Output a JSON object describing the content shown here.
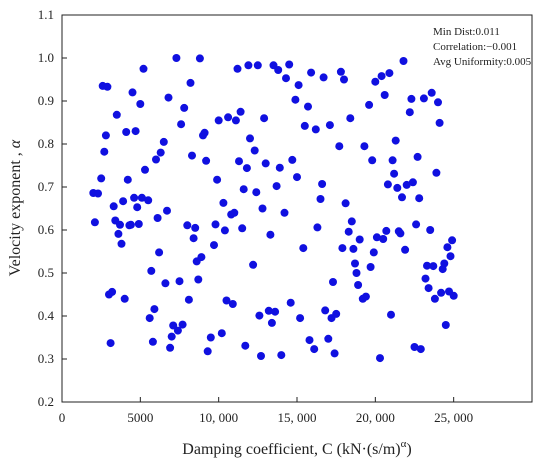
{
  "chart_data": {
    "type": "scatter",
    "title": "",
    "xlabel": "Damping coefficient, C (kN·(s/m)",
    "xlabel_superscript": "α",
    "xlabel_close": ")",
    "ylabel": "Velocity exponent , ",
    "ylabel_symbol": "α",
    "xlim": [
      0,
      30000
    ],
    "ylim": [
      0.2,
      1.1
    ],
    "x_ticks": [
      0,
      5000,
      10000,
      15000,
      20000,
      25000
    ],
    "x_tick_labels": [
      "0",
      "5000",
      "10, 000",
      "15, 000",
      "20, 000",
      "25, 000"
    ],
    "y_ticks": [
      0.2,
      0.3,
      0.4,
      0.5,
      0.6,
      0.7,
      0.8,
      0.9,
      1.0,
      1.1
    ],
    "y_tick_labels": [
      "0.2",
      "0.3",
      "0.4",
      "0.5",
      "0.6",
      "0.7",
      "0.8",
      "0.9",
      "1.0",
      "1.1"
    ],
    "grid": false,
    "marker_color": "#1010e0",
    "annotations": [
      "Min Dist:0.011",
      "Correlation:−0.001",
      "Avg Uniformity:0.005"
    ],
    "points": [
      [
        2000,
        0.686
      ],
      [
        2100,
        0.618
      ],
      [
        2300,
        0.685
      ],
      [
        2500,
        0.72
      ],
      [
        2600,
        0.935
      ],
      [
        2700,
        0.782
      ],
      [
        2800,
        0.82
      ],
      [
        2900,
        0.933
      ],
      [
        3000,
        0.45
      ],
      [
        3100,
        0.337
      ],
      [
        3200,
        0.456
      ],
      [
        3300,
        0.655
      ],
      [
        3400,
        0.622
      ],
      [
        3500,
        0.868
      ],
      [
        3600,
        0.591
      ],
      [
        3700,
        0.612
      ],
      [
        3800,
        0.568
      ],
      [
        3900,
        0.667
      ],
      [
        4000,
        0.44
      ],
      [
        4100,
        0.828
      ],
      [
        4200,
        0.717
      ],
      [
        4300,
        0.611
      ],
      [
        4400,
        0.612
      ],
      [
        4500,
        0.92
      ],
      [
        4600,
        0.675
      ],
      [
        4700,
        0.83
      ],
      [
        4800,
        0.653
      ],
      [
        4900,
        0.614
      ],
      [
        5000,
        0.893
      ],
      [
        5100,
        0.675
      ],
      [
        5200,
        0.975
      ],
      [
        5300,
        0.74
      ],
      [
        5500,
        0.669
      ],
      [
        5600,
        0.395
      ],
      [
        5700,
        0.505
      ],
      [
        5800,
        0.34
      ],
      [
        5900,
        0.416
      ],
      [
        6000,
        0.764
      ],
      [
        6100,
        0.628
      ],
      [
        6200,
        0.548
      ],
      [
        6300,
        0.78
      ],
      [
        6500,
        0.805
      ],
      [
        6600,
        0.476
      ],
      [
        6700,
        0.645
      ],
      [
        6800,
        0.908
      ],
      [
        6900,
        0.326
      ],
      [
        7000,
        0.352
      ],
      [
        7100,
        0.378
      ],
      [
        7300,
        1.0
      ],
      [
        7400,
        0.366
      ],
      [
        7500,
        0.481
      ],
      [
        7600,
        0.846
      ],
      [
        7700,
        0.38
      ],
      [
        7800,
        0.884
      ],
      [
        8000,
        0.611
      ],
      [
        8100,
        0.438
      ],
      [
        8200,
        0.942
      ],
      [
        8300,
        0.773
      ],
      [
        8400,
        0.581
      ],
      [
        8500,
        0.605
      ],
      [
        8600,
        0.527
      ],
      [
        8700,
        0.485
      ],
      [
        8800,
        0.999
      ],
      [
        8900,
        0.537
      ],
      [
        9000,
        0.82
      ],
      [
        9100,
        0.826
      ],
      [
        9200,
        0.761
      ],
      [
        9300,
        0.318
      ],
      [
        9500,
        0.35
      ],
      [
        9700,
        0.565
      ],
      [
        9800,
        0.613
      ],
      [
        9900,
        0.717
      ],
      [
        10000,
        0.855
      ],
      [
        10200,
        0.36
      ],
      [
        10300,
        0.663
      ],
      [
        10400,
        0.599
      ],
      [
        10500,
        0.436
      ],
      [
        10600,
        0.862
      ],
      [
        10800,
        0.636
      ],
      [
        10900,
        0.428
      ],
      [
        11000,
        0.64
      ],
      [
        11100,
        0.855
      ],
      [
        11200,
        0.975
      ],
      [
        11300,
        0.76
      ],
      [
        11400,
        0.875
      ],
      [
        11500,
        0.604
      ],
      [
        11600,
        0.695
      ],
      [
        11700,
        0.331
      ],
      [
        11800,
        0.744
      ],
      [
        11900,
        0.983
      ],
      [
        12000,
        0.813
      ],
      [
        12200,
        0.519
      ],
      [
        12300,
        0.785
      ],
      [
        12400,
        0.688
      ],
      [
        12500,
        0.983
      ],
      [
        12600,
        0.401
      ],
      [
        12700,
        0.307
      ],
      [
        12800,
        0.65
      ],
      [
        12900,
        0.86
      ],
      [
        13000,
        0.755
      ],
      [
        13200,
        0.412
      ],
      [
        13300,
        0.589
      ],
      [
        13400,
        0.384
      ],
      [
        13500,
        0.983
      ],
      [
        13600,
        0.41
      ],
      [
        13700,
        0.702
      ],
      [
        13800,
        0.972
      ],
      [
        13900,
        0.745
      ],
      [
        14000,
        0.309
      ],
      [
        14200,
        0.64
      ],
      [
        14300,
        0.953
      ],
      [
        14500,
        0.985
      ],
      [
        14600,
        0.431
      ],
      [
        14700,
        0.763
      ],
      [
        14900,
        0.903
      ],
      [
        15000,
        0.723
      ],
      [
        15100,
        0.937
      ],
      [
        15200,
        0.395
      ],
      [
        15400,
        0.558
      ],
      [
        15500,
        0.842
      ],
      [
        15700,
        0.887
      ],
      [
        15800,
        0.344
      ],
      [
        15900,
        0.966
      ],
      [
        16100,
        0.323
      ],
      [
        16200,
        0.834
      ],
      [
        16300,
        0.606
      ],
      [
        16500,
        0.672
      ],
      [
        16600,
        0.707
      ],
      [
        16700,
        0.955
      ],
      [
        16800,
        0.413
      ],
      [
        17000,
        0.347
      ],
      [
        17100,
        0.844
      ],
      [
        17200,
        0.395
      ],
      [
        17300,
        0.479
      ],
      [
        17400,
        0.313
      ],
      [
        17500,
        0.405
      ],
      [
        17700,
        0.795
      ],
      [
        17800,
        0.968
      ],
      [
        17900,
        0.558
      ],
      [
        18000,
        0.95
      ],
      [
        18100,
        0.662
      ],
      [
        18300,
        0.596
      ],
      [
        18400,
        0.86
      ],
      [
        18500,
        0.62
      ],
      [
        18600,
        0.556
      ],
      [
        18700,
        0.522
      ],
      [
        18800,
        0.5
      ],
      [
        18900,
        0.472
      ],
      [
        19000,
        0.578
      ],
      [
        19200,
        0.44
      ],
      [
        19300,
        0.795
      ],
      [
        19400,
        0.445
      ],
      [
        19600,
        0.891
      ],
      [
        19700,
        0.514
      ],
      [
        19800,
        0.762
      ],
      [
        19900,
        0.548
      ],
      [
        20000,
        0.945
      ],
      [
        20100,
        0.583
      ],
      [
        20300,
        0.302
      ],
      [
        20400,
        0.958
      ],
      [
        20500,
        0.579
      ],
      [
        20600,
        0.914
      ],
      [
        20700,
        0.598
      ],
      [
        20800,
        0.706
      ],
      [
        20900,
        0.965
      ],
      [
        21000,
        0.403
      ],
      [
        21100,
        0.762
      ],
      [
        21200,
        0.731
      ],
      [
        21300,
        0.808
      ],
      [
        21400,
        0.698
      ],
      [
        21500,
        0.597
      ],
      [
        21600,
        0.592
      ],
      [
        21700,
        0.676
      ],
      [
        21800,
        0.993
      ],
      [
        21900,
        0.554
      ],
      [
        22000,
        0.705
      ],
      [
        22200,
        0.874
      ],
      [
        22300,
        0.905
      ],
      [
        22400,
        0.711
      ],
      [
        22500,
        0.328
      ],
      [
        22600,
        0.613
      ],
      [
        22700,
        0.77
      ],
      [
        22800,
        0.674
      ],
      [
        22900,
        0.323
      ],
      [
        23100,
        0.906
      ],
      [
        23200,
        0.487
      ],
      [
        23300,
        0.517
      ],
      [
        23400,
        0.465
      ],
      [
        23500,
        0.6
      ],
      [
        23600,
        0.919
      ],
      [
        23700,
        0.516
      ],
      [
        23800,
        0.44
      ],
      [
        23900,
        0.733
      ],
      [
        24000,
        0.897
      ],
      [
        24100,
        0.849
      ],
      [
        24200,
        0.454
      ],
      [
        24300,
        0.509
      ],
      [
        24400,
        0.522
      ],
      [
        24500,
        0.379
      ],
      [
        24600,
        0.56
      ],
      [
        24700,
        0.457
      ],
      [
        24800,
        0.539
      ],
      [
        24900,
        0.576
      ],
      [
        25000,
        0.447
      ]
    ]
  }
}
